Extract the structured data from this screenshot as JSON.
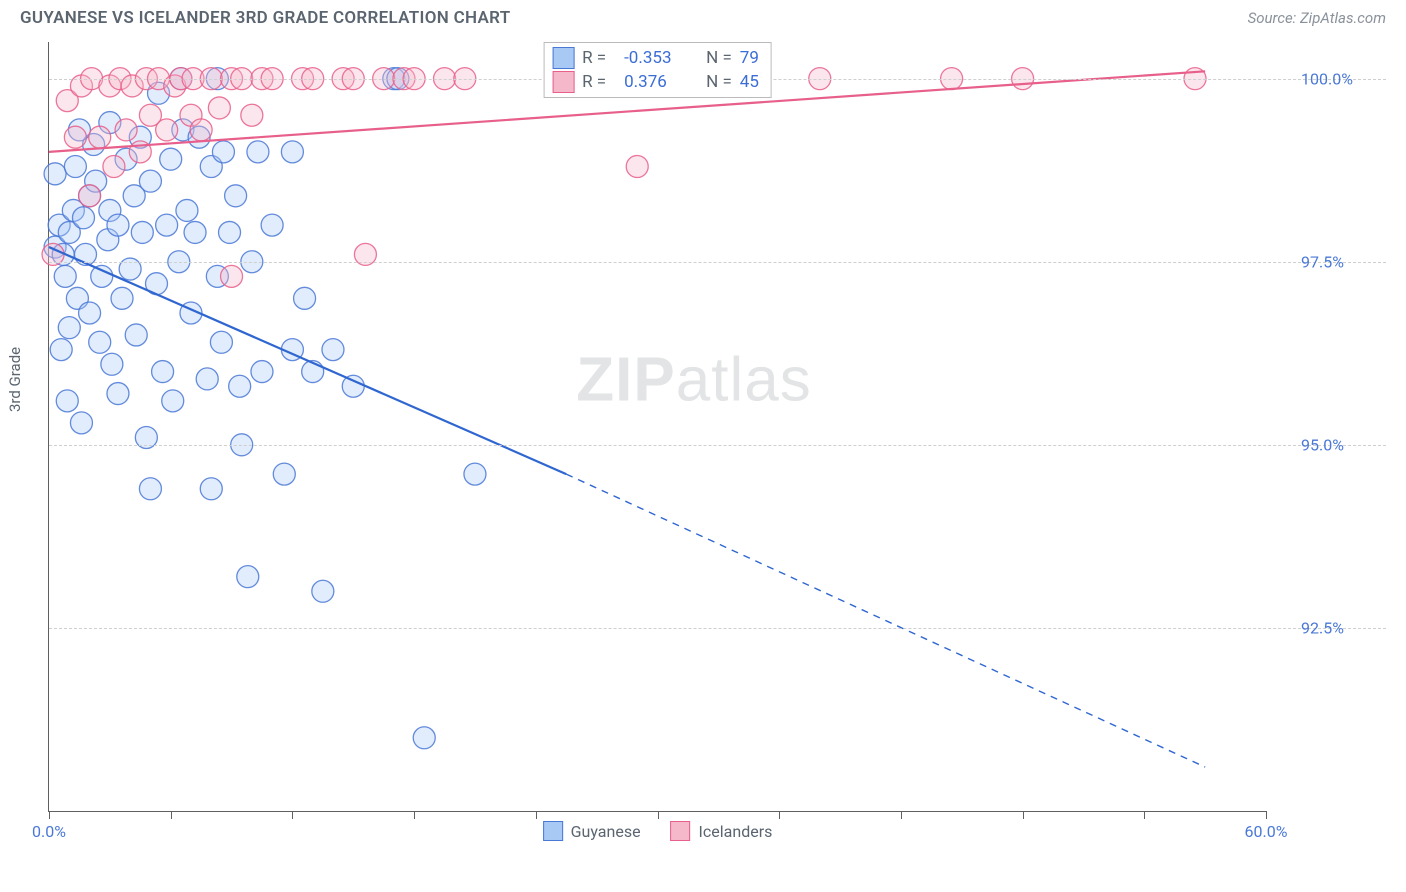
{
  "header": {
    "title": "GUYANESE VS ICELANDER 3RD GRADE CORRELATION CHART",
    "source": "Source: ZipAtlas.com"
  },
  "watermark": {
    "part1": "ZIP",
    "part2": "atlas"
  },
  "chart": {
    "type": "scatter",
    "ylabel": "3rd Grade",
    "xlim": [
      0,
      60
    ],
    "ylim": [
      90.0,
      100.5
    ],
    "x_ticks": [
      0,
      6,
      12,
      18,
      24,
      30,
      36,
      42,
      48,
      54,
      60
    ],
    "x_tick_labels": {
      "0": "0.0%",
      "60": "60.0%"
    },
    "y_gridlines": [
      92.5,
      95.0,
      97.5,
      100.0
    ],
    "y_tick_labels": {
      "92.5": "92.5%",
      "95.0": "95.0%",
      "97.5": "97.5%",
      "100.0": "100.0%"
    },
    "marker_radius": 11,
    "background_color": "#ffffff",
    "grid_color": "#cfcfcf",
    "axis_color": "#5f5f5f",
    "series": [
      {
        "name": "Guyanese",
        "color_fill": "#a9c9f5",
        "color_stroke": "#4a78d6",
        "R": "-0.353",
        "N": "79",
        "trend": {
          "x1": 0,
          "y1": 97.7,
          "x2": 25.5,
          "y2": 94.6,
          "x2_dash": 57,
          "y2_dash": 90.6,
          "color": "#2f66d0",
          "width": 2.2
        },
        "points": [
          [
            0.3,
            97.7
          ],
          [
            0.5,
            98.0
          ],
          [
            0.7,
            97.6
          ],
          [
            1.0,
            97.9
          ],
          [
            0.8,
            97.3
          ],
          [
            1.2,
            98.2
          ],
          [
            1.0,
            96.6
          ],
          [
            1.4,
            97.0
          ],
          [
            0.3,
            98.7
          ],
          [
            1.7,
            98.1
          ],
          [
            0.6,
            96.3
          ],
          [
            1.8,
            97.6
          ],
          [
            2.0,
            98.4
          ],
          [
            2.0,
            96.8
          ],
          [
            0.9,
            95.6
          ],
          [
            1.3,
            98.8
          ],
          [
            2.3,
            98.6
          ],
          [
            2.6,
            97.3
          ],
          [
            2.5,
            96.4
          ],
          [
            2.9,
            97.8
          ],
          [
            3.0,
            98.2
          ],
          [
            3.1,
            96.1
          ],
          [
            1.6,
            95.3
          ],
          [
            3.4,
            98.0
          ],
          [
            3.6,
            97.0
          ],
          [
            3.4,
            95.7
          ],
          [
            3.8,
            98.9
          ],
          [
            4.0,
            97.4
          ],
          [
            4.3,
            96.5
          ],
          [
            4.2,
            98.4
          ],
          [
            4.5,
            99.2
          ],
          [
            4.6,
            97.9
          ],
          [
            5.0,
            98.6
          ],
          [
            4.8,
            95.1
          ],
          [
            5.3,
            97.2
          ],
          [
            5.4,
            99.8
          ],
          [
            2.2,
            99.1
          ],
          [
            5.6,
            96.0
          ],
          [
            5.8,
            98.0
          ],
          [
            6.0,
            98.9
          ],
          [
            6.1,
            95.6
          ],
          [
            6.4,
            97.5
          ],
          [
            6.5,
            100.0
          ],
          [
            6.6,
            99.3
          ],
          [
            6.8,
            98.2
          ],
          [
            7.0,
            96.8
          ],
          [
            7.2,
            97.9
          ],
          [
            7.4,
            99.2
          ],
          [
            5.0,
            94.4
          ],
          [
            7.8,
            95.9
          ],
          [
            8.0,
            98.8
          ],
          [
            8.3,
            97.3
          ],
          [
            8.3,
            100.0
          ],
          [
            8.6,
            99.0
          ],
          [
            8.5,
            96.4
          ],
          [
            8.9,
            97.9
          ],
          [
            9.2,
            98.4
          ],
          [
            9.4,
            95.8
          ],
          [
            8.0,
            94.4
          ],
          [
            10.0,
            97.5
          ],
          [
            10.3,
            99.0
          ],
          [
            10.5,
            96.0
          ],
          [
            9.5,
            95.0
          ],
          [
            11.0,
            98.0
          ],
          [
            11.6,
            94.6
          ],
          [
            12.0,
            99.0
          ],
          [
            12.0,
            96.3
          ],
          [
            12.6,
            97.0
          ],
          [
            13.0,
            96.0
          ],
          [
            14.0,
            96.3
          ],
          [
            13.5,
            93.0
          ],
          [
            15.0,
            95.8
          ],
          [
            18.5,
            91.0
          ],
          [
            21.0,
            94.6
          ],
          [
            9.8,
            93.2
          ],
          [
            17.0,
            100.0
          ],
          [
            17.2,
            100.0
          ],
          [
            3.0,
            99.4
          ],
          [
            1.5,
            99.3
          ]
        ]
      },
      {
        "name": "Icelanders",
        "color_fill": "#f5b8ca",
        "color_stroke": "#e75f8a",
        "R": "0.376",
        "N": "45",
        "trend": {
          "x1": 0,
          "y1": 99.0,
          "x2": 57,
          "y2": 100.1,
          "color": "#e75f8a",
          "width": 2.2
        },
        "points": [
          [
            0.2,
            97.6
          ],
          [
            0.9,
            99.7
          ],
          [
            1.3,
            99.2
          ],
          [
            1.6,
            99.9
          ],
          [
            2.0,
            98.4
          ],
          [
            2.1,
            100.0
          ],
          [
            2.5,
            99.2
          ],
          [
            3.0,
            99.9
          ],
          [
            3.2,
            98.8
          ],
          [
            3.5,
            100.0
          ],
          [
            3.8,
            99.3
          ],
          [
            4.1,
            99.9
          ],
          [
            4.5,
            99.0
          ],
          [
            4.8,
            100.0
          ],
          [
            5.0,
            99.5
          ],
          [
            5.4,
            100.0
          ],
          [
            5.8,
            99.3
          ],
          [
            6.2,
            99.9
          ],
          [
            6.5,
            100.0
          ],
          [
            7.0,
            99.5
          ],
          [
            7.1,
            100.0
          ],
          [
            7.5,
            99.3
          ],
          [
            8.0,
            100.0
          ],
          [
            8.4,
            99.6
          ],
          [
            9.0,
            100.0
          ],
          [
            9.5,
            100.0
          ],
          [
            10.0,
            99.5
          ],
          [
            10.5,
            100.0
          ],
          [
            11.0,
            100.0
          ],
          [
            12.5,
            100.0
          ],
          [
            13.0,
            100.0
          ],
          [
            14.5,
            100.0
          ],
          [
            15.0,
            100.0
          ],
          [
            15.6,
            97.6
          ],
          [
            16.5,
            100.0
          ],
          [
            17.5,
            100.0
          ],
          [
            18.0,
            100.0
          ],
          [
            19.5,
            100.0
          ],
          [
            20.5,
            100.0
          ],
          [
            29.0,
            98.8
          ],
          [
            38.0,
            100.0
          ],
          [
            44.5,
            100.0
          ],
          [
            48.0,
            100.0
          ],
          [
            56.5,
            100.0
          ],
          [
            9.0,
            97.3
          ]
        ]
      }
    ],
    "legend_bottom": [
      {
        "label": "Guyanese",
        "fill": "#a9c9f5",
        "stroke": "#4a78d6"
      },
      {
        "label": "Icelanders",
        "fill": "#f5b8ca",
        "stroke": "#e75f8a"
      }
    ]
  }
}
